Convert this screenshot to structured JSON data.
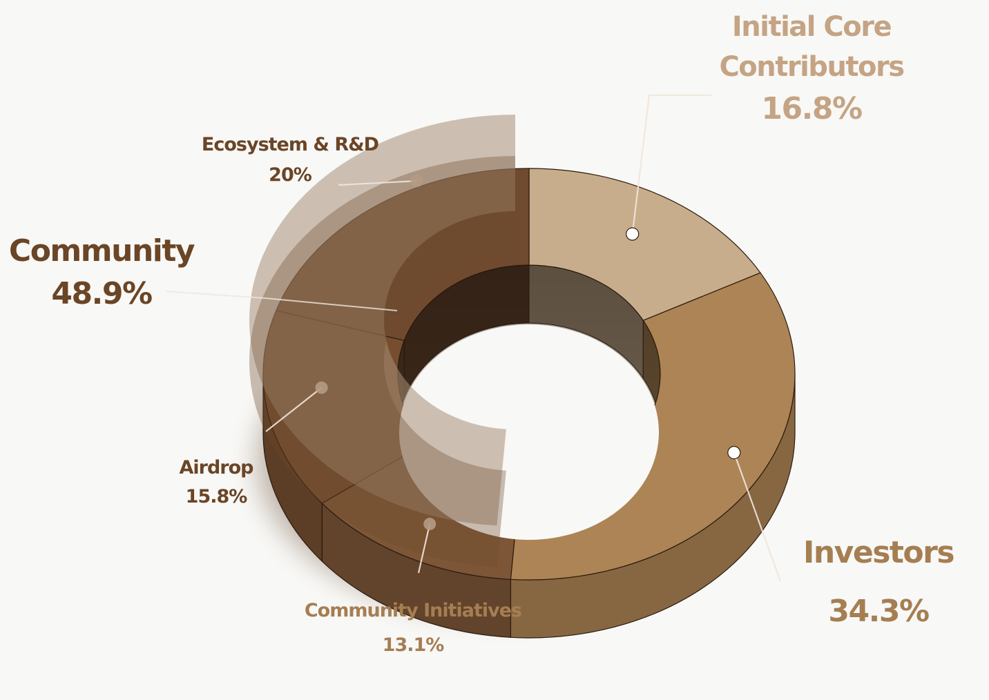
{
  "chart_data": {
    "type": "pie",
    "style": "3d-donut",
    "series": [
      {
        "name": "Initial Core Contributors",
        "value": 16.8,
        "value_label": "16.8%",
        "color": "#c8ad8c"
      },
      {
        "name": "Investors",
        "value": 34.3,
        "value_label": "34.3%",
        "color": "#ad8455"
      },
      {
        "name": "Community Initiatives",
        "value": 13.1,
        "value_label": "13.1%",
        "color": "#7d5637"
      },
      {
        "name": "Airdrop",
        "value": 15.8,
        "value_label": "15.8%",
        "color": "#764e2f"
      },
      {
        "name": "Ecosystem & R&D",
        "value": 20,
        "value_label": "20%",
        "color": "#6f4a2f"
      }
    ],
    "groups": [
      {
        "name": "Community",
        "value": 48.9,
        "value_label": "48.9%",
        "members": [
          "Ecosystem & R&D",
          "Airdrop",
          "Community Initiatives"
        ],
        "color": "#6e4a2f"
      }
    ]
  },
  "colors": {
    "background": "#f8f8f6",
    "label_light": "#c4a484",
    "label_mid": "#a57e52",
    "label_dark": "#6a4526",
    "group_overlay": "#a88f78"
  }
}
